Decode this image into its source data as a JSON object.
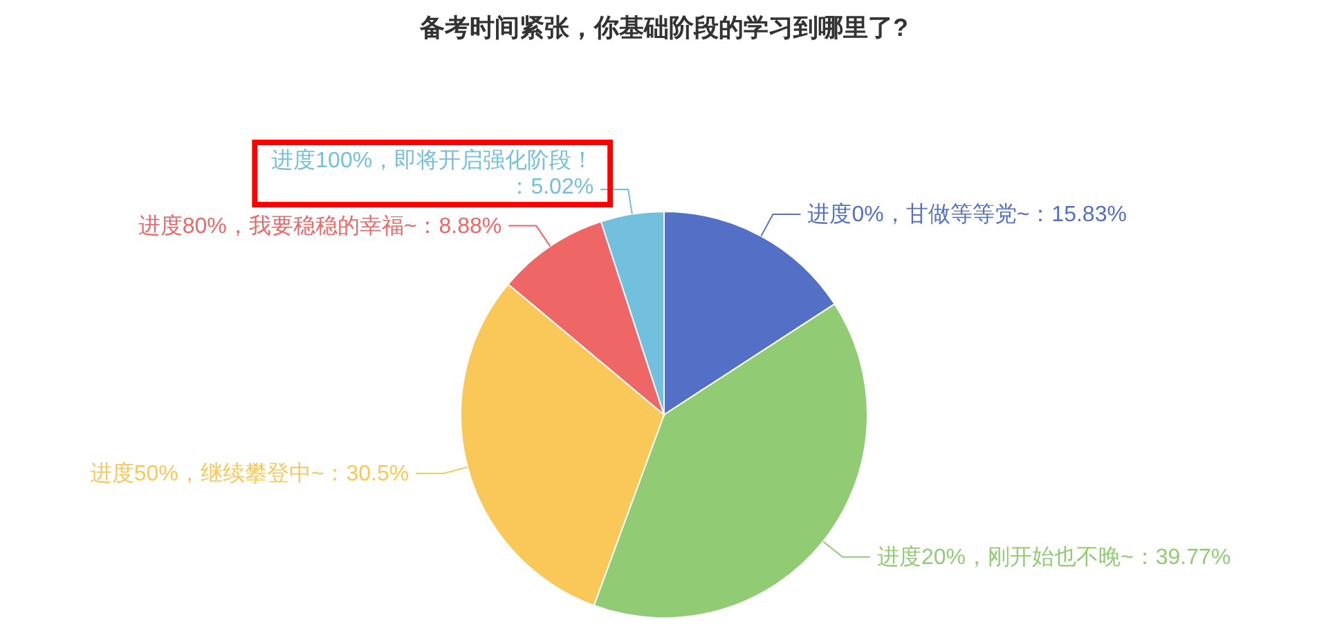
{
  "chart_data": {
    "type": "pie",
    "title": "备考时间紧张，你基础阶段的学习到哪里了?",
    "categories": [
      "进度0%，甘做等等党~",
      "进度20%，刚开始也不晚~",
      "进度50%，继续攀登中~",
      "进度80%，我要稳稳的幸福~",
      "进度100%，即将开启强化阶段！"
    ],
    "values": [
      15.83,
      39.77,
      30.5,
      8.88,
      5.02
    ],
    "colors": [
      "#5470c6",
      "#91cc75",
      "#fac858",
      "#ee6666",
      "#73c0de"
    ],
    "value_labels": [
      "：15.83%",
      "：39.77%",
      "：30.5%",
      "：8.88%",
      "：5.02%"
    ]
  }
}
